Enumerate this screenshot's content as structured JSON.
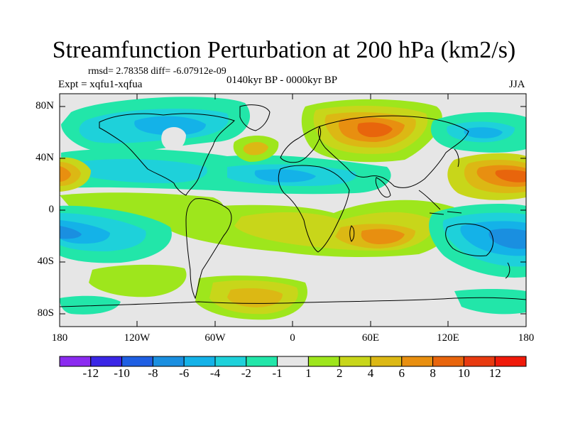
{
  "header": {
    "title": "Streamfunction Perturbation at 200 hPa (km2/s)",
    "stats": "rmsd= 2.78358 diff= -6.07912e-09",
    "experiment": "Expt = xqfu1-xqfua",
    "period": "0140kyr BP - 0000kyr BP",
    "season": "JJA"
  },
  "axes": {
    "x_ticks": [
      "180",
      "120W",
      "60W",
      "0",
      "60E",
      "120E",
      "180"
    ],
    "y_ticks": [
      "80N",
      "40N",
      "0",
      "40S",
      "80S"
    ]
  },
  "colorbar": {
    "labels": [
      "-12",
      "-10",
      "-8",
      "-6",
      "-4",
      "-2",
      "-1",
      "1",
      "2",
      "4",
      "6",
      "8",
      "10",
      "12"
    ],
    "colors": [
      "#8b2bf0",
      "#3a26e6",
      "#1f5fe3",
      "#1a8fe0",
      "#14b2e8",
      "#1ed1da",
      "#22e6a9",
      "#e6e6e6",
      "#9ee61c",
      "#c8d61a",
      "#dcb814",
      "#e88f10",
      "#e8650c",
      "#e83a10",
      "#f01a0a"
    ]
  },
  "map_colors": {
    "background": "#e6e6e6",
    "coast": "#000000"
  }
}
